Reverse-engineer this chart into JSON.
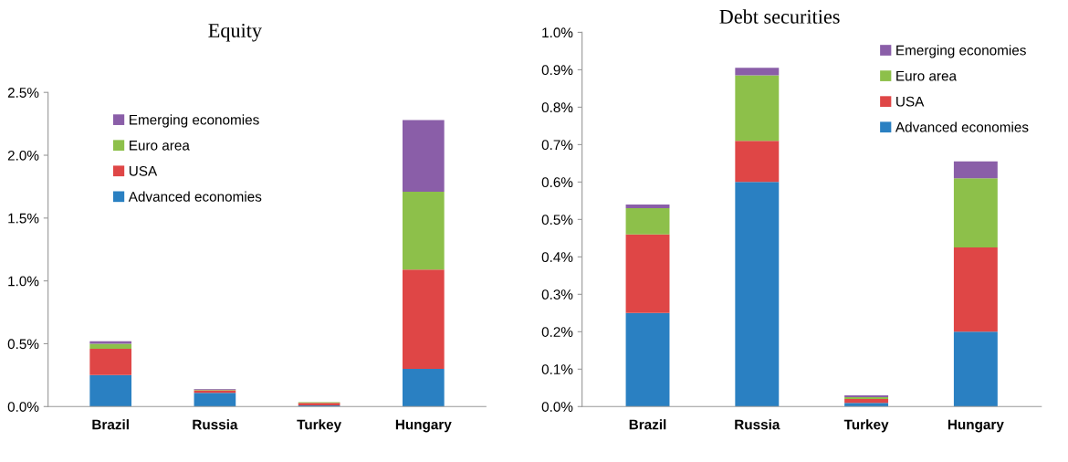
{
  "chart_data": [
    {
      "type": "bar",
      "title": "Equity",
      "stacked": true,
      "legend": "top left",
      "grid": false,
      "categories": [
        "Brazil",
        "Russia",
        "Turkey",
        "Hungary"
      ],
      "ylim": [
        0,
        2.5
      ],
      "yticks": [
        {
          "value": 0,
          "label": "0.0%"
        },
        {
          "value": 0.5,
          "label": "0.5%"
        },
        {
          "value": 1.0,
          "label": "1.0%"
        },
        {
          "value": 1.5,
          "label": "1.5%"
        },
        {
          "value": 2.0,
          "label": "2.0%"
        },
        {
          "value": 2.5,
          "label": "2.5%"
        }
      ],
      "series": [
        {
          "name": "Advanced economies",
          "color": "#2a80c2",
          "values": [
            0.25,
            0.11,
            0.01,
            0.3
          ]
        },
        {
          "name": "USA",
          "color": "#df4646",
          "values": [
            0.21,
            0.02,
            0.02,
            0.79
          ]
        },
        {
          "name": "Euro area",
          "color": "#8dc04a",
          "values": [
            0.04,
            0.005,
            0.005,
            0.62
          ]
        },
        {
          "name": "Emerging economies",
          "color": "#8a5ea8",
          "values": [
            0.02,
            0.005,
            0.0,
            0.57
          ]
        }
      ]
    },
    {
      "type": "bar",
      "title": "Debt securities",
      "stacked": true,
      "legend": "top right",
      "grid": false,
      "categories": [
        "Brazil",
        "Russia",
        "Turkey",
        "Hungary"
      ],
      "ylim": [
        0,
        1.0
      ],
      "yticks": [
        {
          "value": 0,
          "label": "0.0%"
        },
        {
          "value": 0.1,
          "label": "0.1%"
        },
        {
          "value": 0.2,
          "label": "0.2%"
        },
        {
          "value": 0.3,
          "label": "0.3%"
        },
        {
          "value": 0.4,
          "label": "0.4%"
        },
        {
          "value": 0.5,
          "label": "0.5%"
        },
        {
          "value": 0.6,
          "label": "0.6%"
        },
        {
          "value": 0.7,
          "label": "0.7%"
        },
        {
          "value": 0.8,
          "label": "0.8%"
        },
        {
          "value": 0.9,
          "label": "0.9%"
        },
        {
          "value": 1.0,
          "label": "1.0%"
        }
      ],
      "series": [
        {
          "name": "Advanced economies",
          "color": "#2a80c2",
          "values": [
            0.25,
            0.6,
            0.01,
            0.2
          ]
        },
        {
          "name": "USA",
          "color": "#df4646",
          "values": [
            0.21,
            0.11,
            0.01,
            0.225
          ]
        },
        {
          "name": "Euro area",
          "color": "#8dc04a",
          "values": [
            0.07,
            0.175,
            0.005,
            0.185
          ]
        },
        {
          "name": "Emerging economies",
          "color": "#8a5ea8",
          "values": [
            0.01,
            0.02,
            0.005,
            0.045
          ]
        }
      ]
    }
  ]
}
